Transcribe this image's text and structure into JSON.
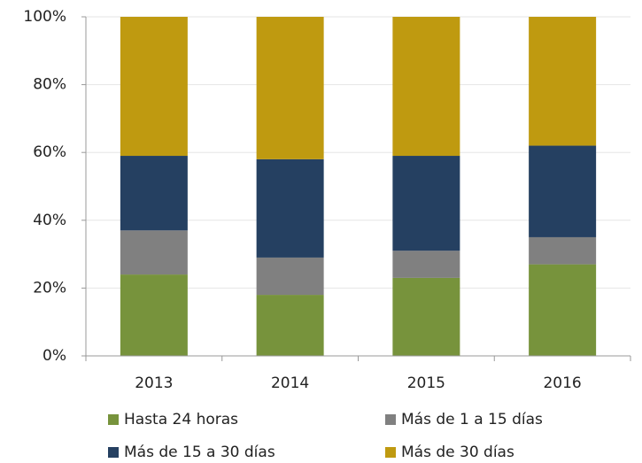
{
  "chart_data": {
    "type": "stacked_bar",
    "categories": [
      "2013",
      "2014",
      "2015",
      "2016"
    ],
    "series": [
      {
        "name": "Hasta 24 horas",
        "color": "#77933c",
        "values": [
          24,
          18,
          23,
          27
        ]
      },
      {
        "name": "Más de 1 a 15 días",
        "color": "#808080",
        "values": [
          13,
          11,
          8,
          8
        ]
      },
      {
        "name": "Más de 15 a 30 días",
        "color": "#254061",
        "values": [
          22,
          29,
          28,
          27
        ]
      },
      {
        "name": "Más de 30 días",
        "color": "#bf9a10",
        "values": [
          41,
          42,
          41,
          38
        ]
      }
    ],
    "ylim": [
      0,
      100
    ],
    "yticks": [
      {
        "value": 0,
        "label": "0%"
      },
      {
        "value": 20,
        "label": "20%"
      },
      {
        "value": 40,
        "label": "40%"
      },
      {
        "value": 60,
        "label": "60%"
      },
      {
        "value": 80,
        "label": "80%"
      },
      {
        "value": 100,
        "label": "100%"
      }
    ],
    "grid": true
  }
}
